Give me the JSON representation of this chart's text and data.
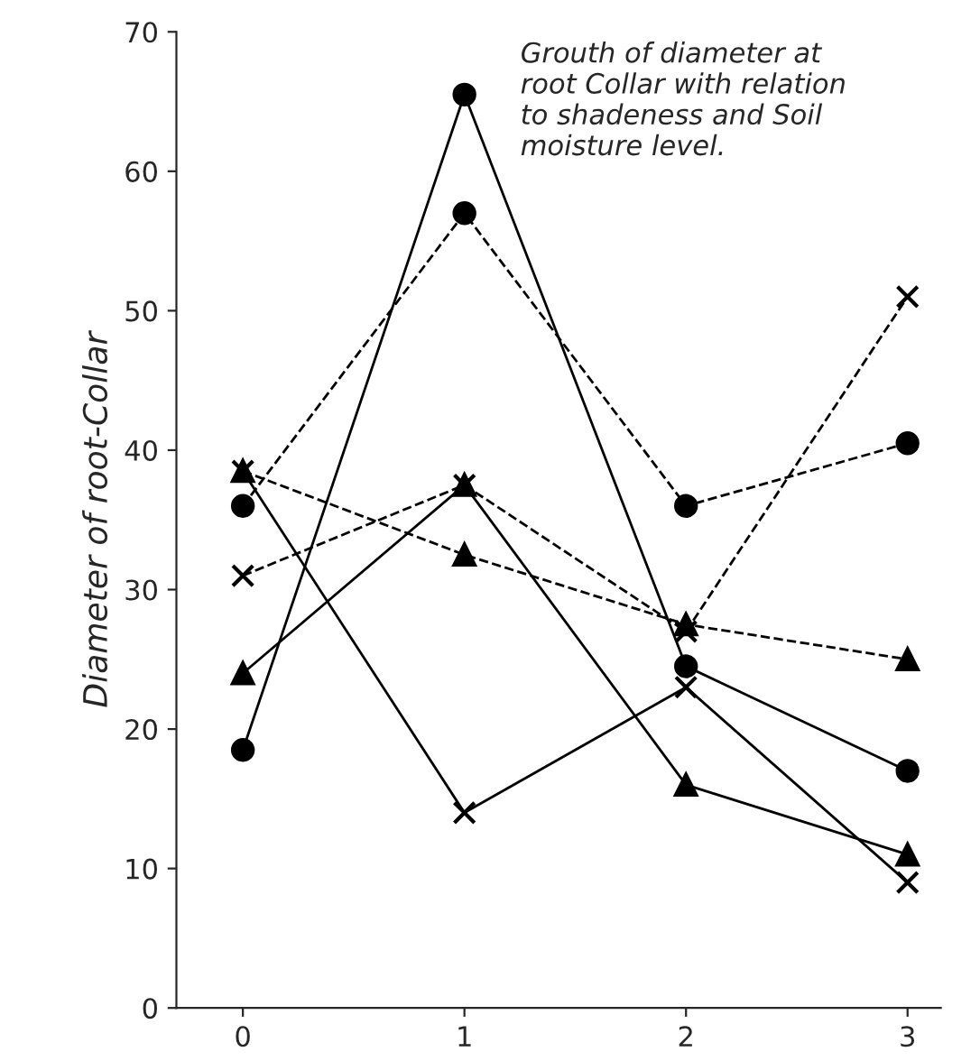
{
  "chart_data": {
    "type": "line",
    "title": "Grouth of diameter at\nroot Collar with relation\nto shadeness and Soil\nmoisture level.",
    "ylabel": "Diameter of root-Collar",
    "x": [
      0,
      1,
      2,
      3
    ],
    "xlim": [
      -0.3,
      3.15
    ],
    "xticks": [
      0,
      1,
      2,
      3
    ],
    "ylim": [
      0,
      70
    ],
    "yticks": [
      0,
      10,
      20,
      30,
      40,
      50,
      60,
      70
    ],
    "grid": false,
    "legend": false,
    "series": [
      {
        "color": "#000000",
        "marker": "circle",
        "line_style": "solid",
        "values": [
          18.5,
          65.5,
          24.5,
          17
        ]
      },
      {
        "color": "#000000",
        "marker": "circle",
        "line_style": "dashed",
        "values": [
          36,
          57,
          36,
          40.5
        ]
      },
      {
        "color": "#000000",
        "marker": "triangle",
        "line_style": "solid",
        "values": [
          24,
          37.5,
          16,
          11
        ]
      },
      {
        "color": "#000000",
        "marker": "triangle",
        "line_style": "dashed",
        "values": [
          38.5,
          32.5,
          27.5,
          25
        ]
      },
      {
        "color": "#000000",
        "marker": "cross",
        "line_style": "solid",
        "values": [
          38.5,
          14,
          23,
          9
        ]
      },
      {
        "color": "#000000",
        "marker": "cross",
        "line_style": "dashed",
        "values": [
          31,
          37.5,
          27,
          51
        ]
      }
    ]
  }
}
